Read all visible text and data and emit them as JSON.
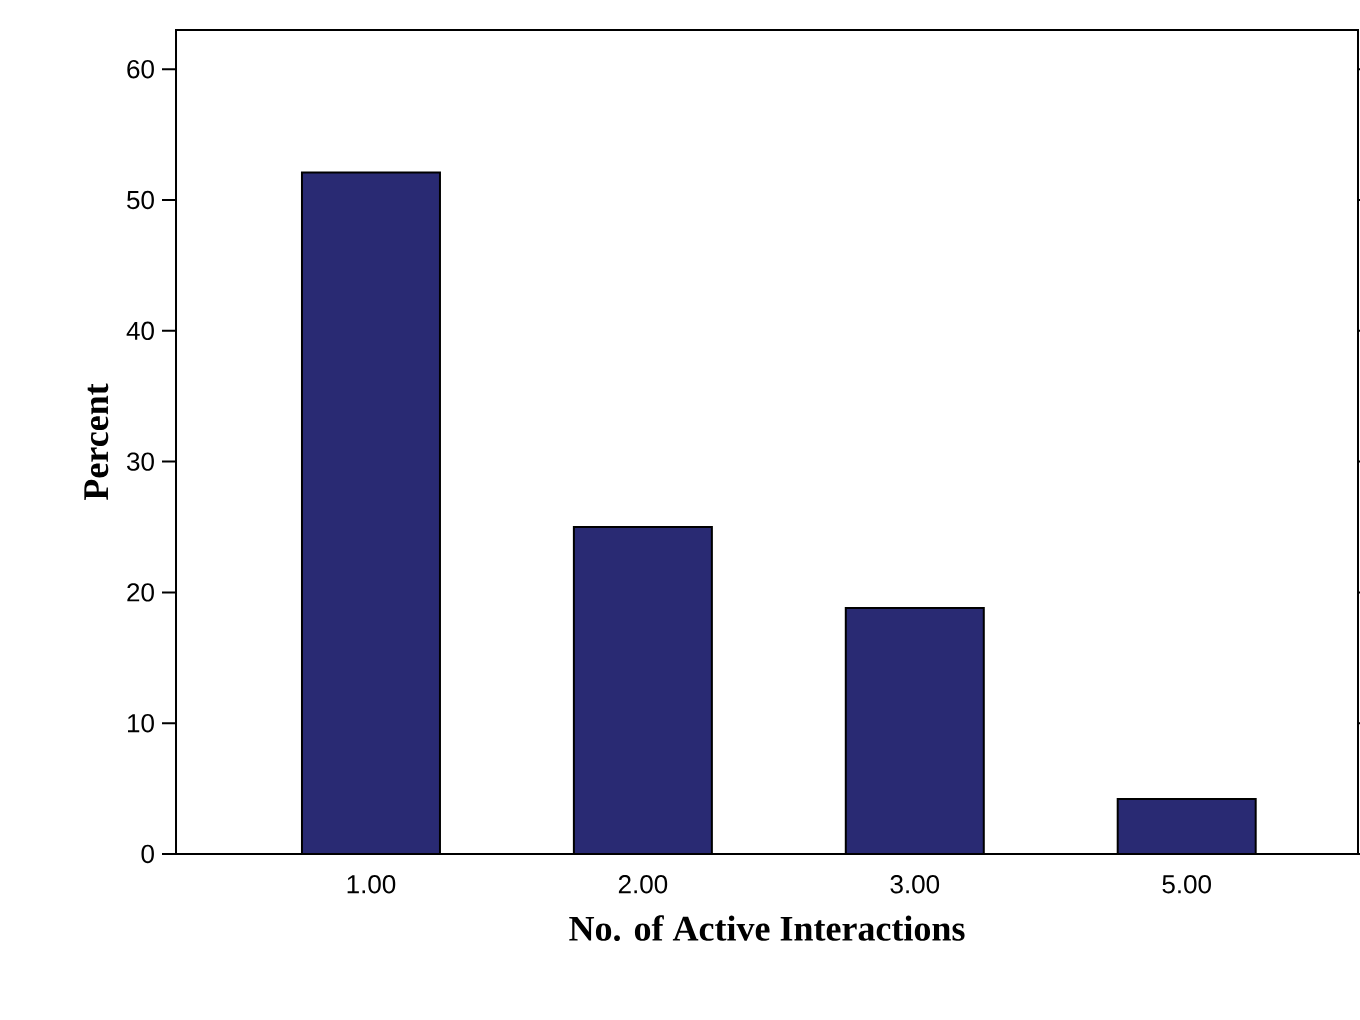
{
  "chart_data": {
    "type": "bar",
    "xlabel": "No. of Active Interactions",
    "ylabel": "Percent",
    "categories": [
      "1.00",
      "2.00",
      "3.00",
      "5.00"
    ],
    "values": [
      52.1,
      25.0,
      18.8,
      4.2
    ],
    "color": "#292a73",
    "ylim": [
      0,
      63
    ],
    "yticks": [
      0,
      10,
      20,
      30,
      40,
      50,
      60
    ]
  }
}
